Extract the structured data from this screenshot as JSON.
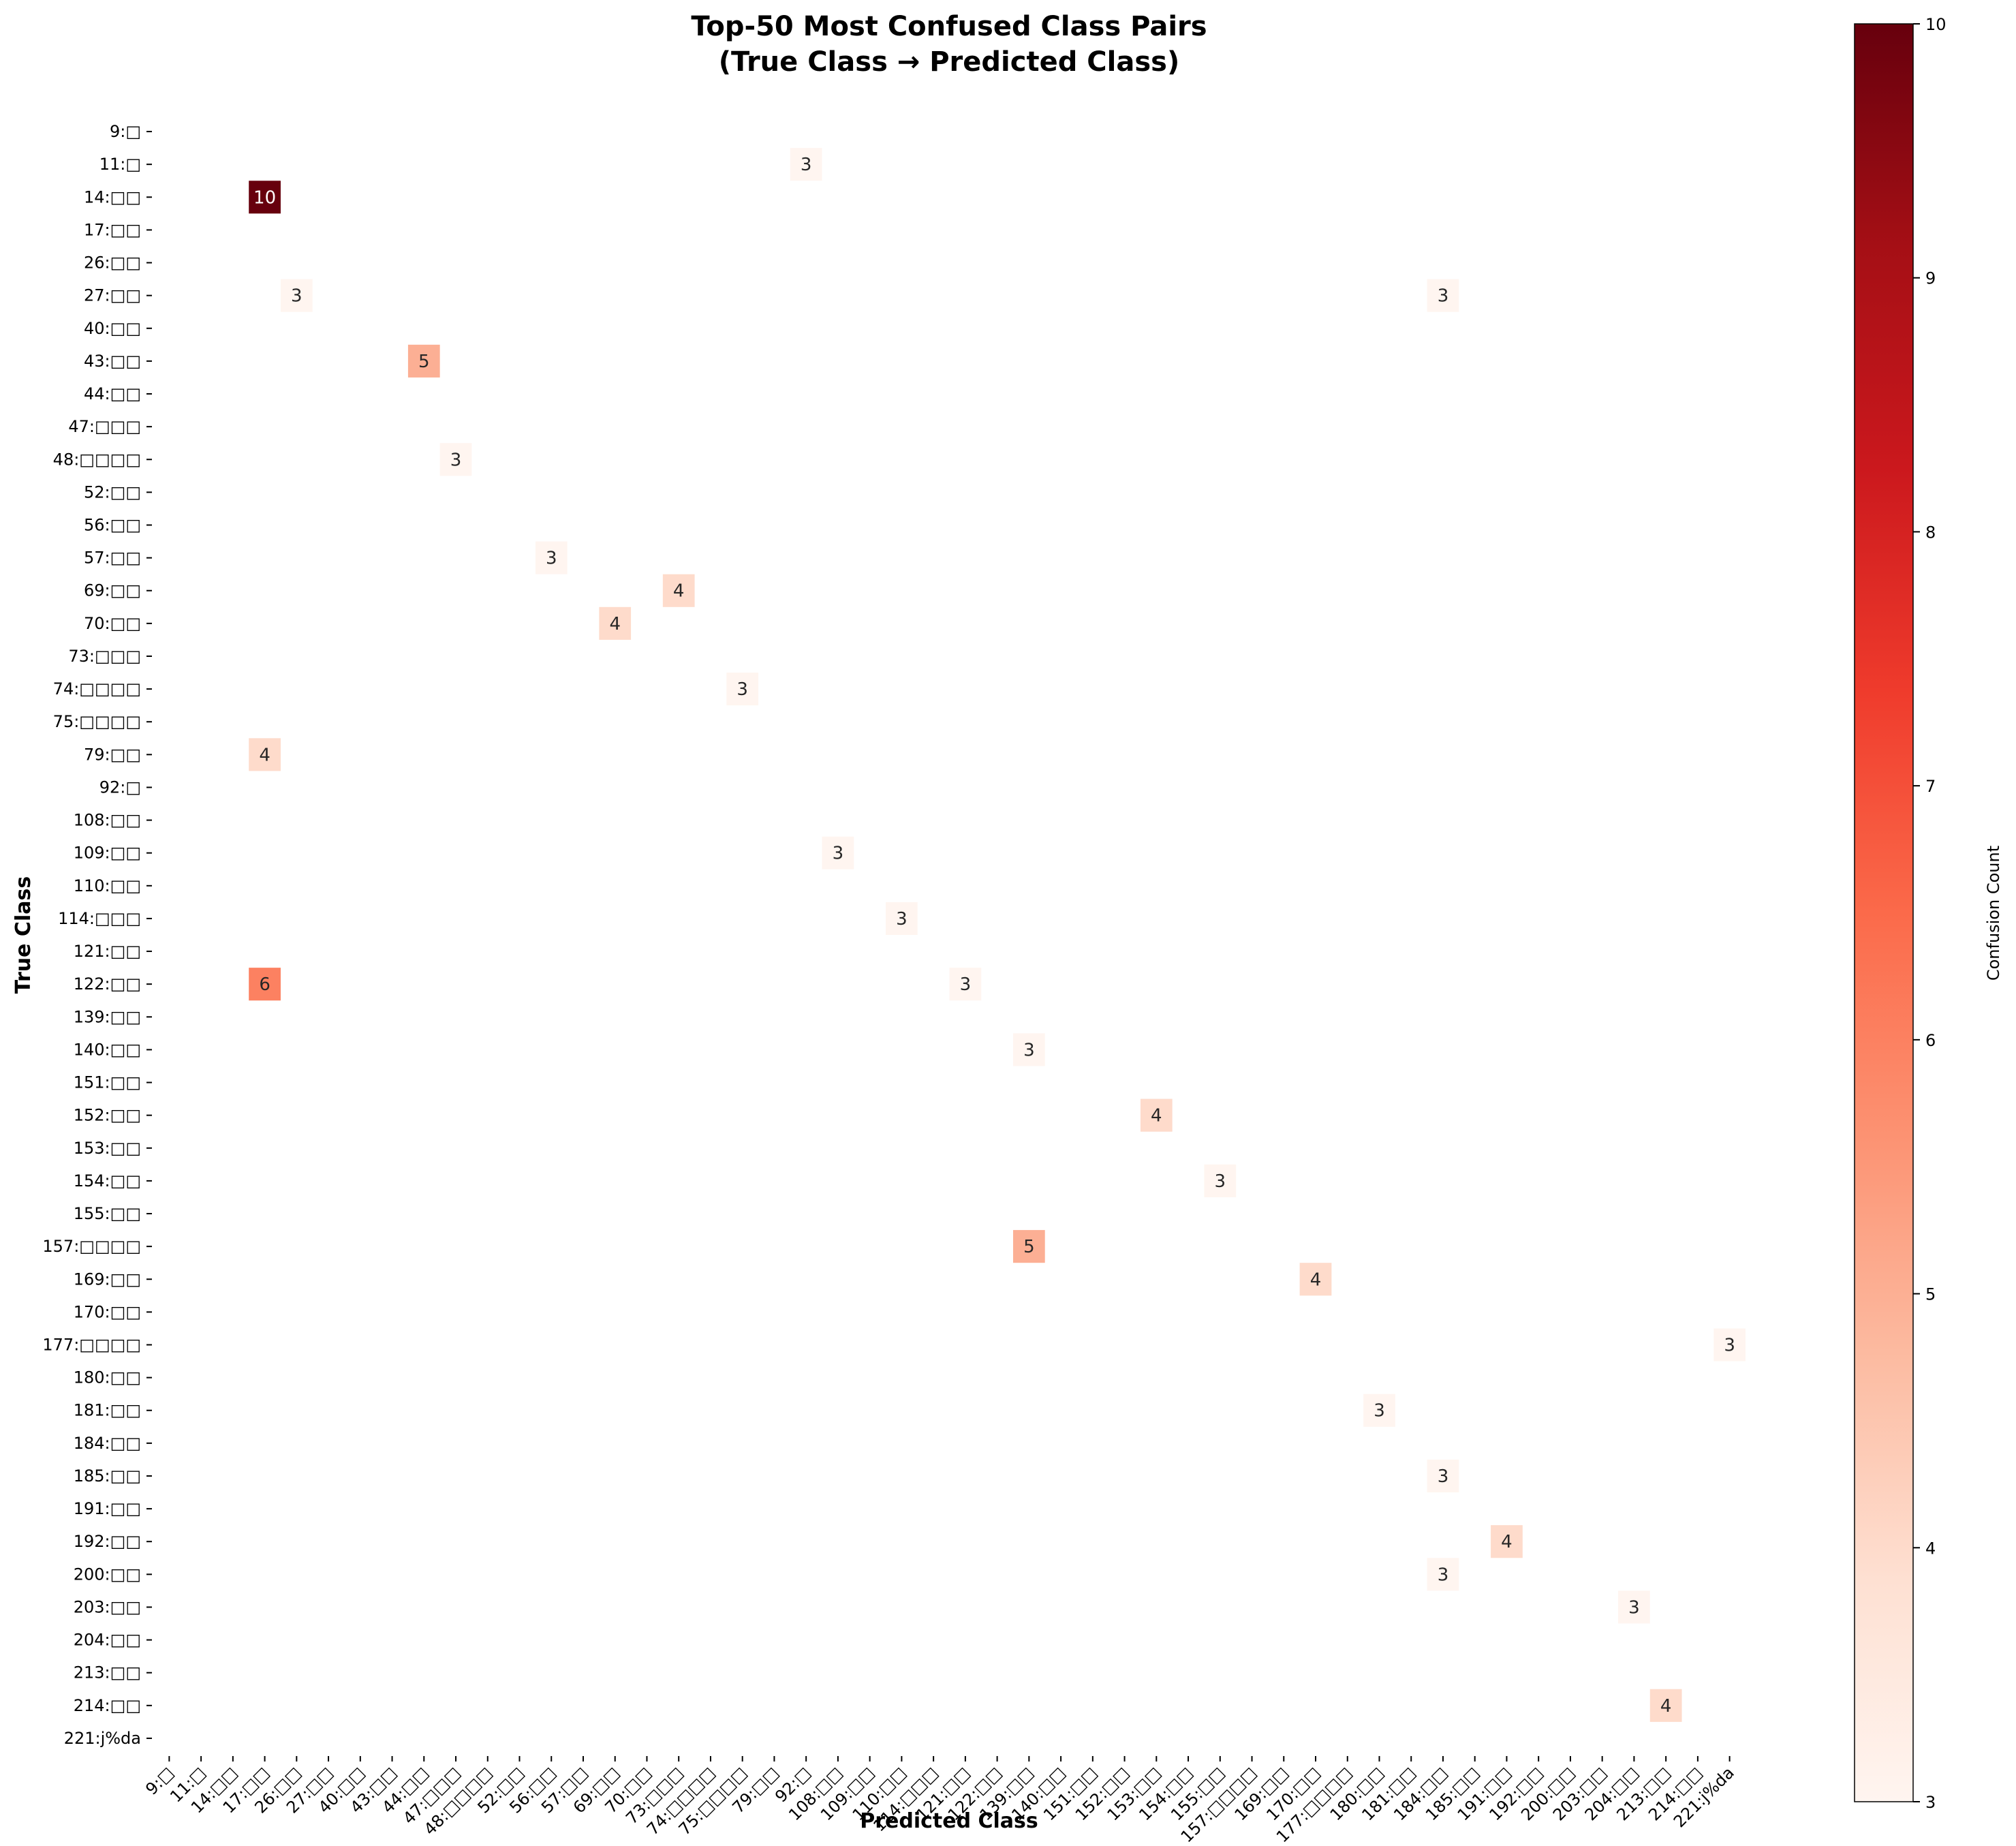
{
  "chart_data": {
    "type": "heatmap",
    "title_lines": [
      "Top-50 Most Confused Class Pairs",
      "(True Class → Predicted Class)"
    ],
    "xlabel": "Predicted Class",
    "ylabel": "True Class",
    "colorbar_label": "Confusion Count",
    "colorbar_range": [
      3,
      10
    ],
    "colorbar_ticks": [
      3,
      4,
      5,
      6,
      7,
      8,
      9,
      10
    ],
    "colormap": "Reds",
    "classes": [
      "9:□",
      "11:□",
      "14:□□",
      "17:□□",
      "26:□□",
      "27:□□",
      "40:□□",
      "43:□□",
      "44:□□",
      "47:□□□",
      "48:□□□□",
      "52:□□",
      "56:□□",
      "57:□□",
      "69:□□",
      "70:□□",
      "73:□□□",
      "74:□□□□",
      "75:□□□□",
      "79:□□",
      "92:□",
      "108:□□",
      "109:□□",
      "110:□□",
      "114:□□□",
      "121:□□",
      "122:□□",
      "139:□□",
      "140:□□",
      "151:□□",
      "152:□□",
      "153:□□",
      "154:□□",
      "155:□□",
      "157:□□□□",
      "169:□□",
      "170:□□",
      "177:□□□□",
      "180:□□",
      "181:□□",
      "184:□□",
      "185:□□",
      "191:□□",
      "192:□□",
      "200:□□",
      "203:□□",
      "204:□□",
      "213:□□",
      "214:□□",
      "221:j%da"
    ],
    "cells": [
      {
        "true": "11:□",
        "pred": "92:□",
        "value": 3
      },
      {
        "true": "14:□□",
        "pred": "17:□□",
        "value": 10
      },
      {
        "true": "27:□□",
        "pred": "26:□□",
        "value": 3
      },
      {
        "true": "27:□□",
        "pred": "184:□□",
        "value": 3
      },
      {
        "true": "43:□□",
        "pred": "44:□□",
        "value": 5
      },
      {
        "true": "48:□□□□",
        "pred": "47:□□□",
        "value": 3
      },
      {
        "true": "57:□□",
        "pred": "56:□□",
        "value": 3
      },
      {
        "true": "69:□□",
        "pred": "73:□□□",
        "value": 4
      },
      {
        "true": "70:□□",
        "pred": "69:□□",
        "value": 4
      },
      {
        "true": "74:□□□□",
        "pred": "75:□□□□",
        "value": 3
      },
      {
        "true": "79:□□",
        "pred": "17:□□",
        "value": 4
      },
      {
        "true": "109:□□",
        "pred": "108:□□",
        "value": 3
      },
      {
        "true": "114:□□□",
        "pred": "110:□□",
        "value": 3
      },
      {
        "true": "122:□□",
        "pred": "17:□□",
        "value": 6
      },
      {
        "true": "122:□□",
        "pred": "121:□□",
        "value": 3
      },
      {
        "true": "140:□□",
        "pred": "139:□□",
        "value": 3
      },
      {
        "true": "152:□□",
        "pred": "153:□□",
        "value": 4
      },
      {
        "true": "154:□□",
        "pred": "155:□□",
        "value": 3
      },
      {
        "true": "157:□□□□",
        "pred": "139:□□",
        "value": 5
      },
      {
        "true": "169:□□",
        "pred": "170:□□",
        "value": 4
      },
      {
        "true": "177:□□□□",
        "pred": "221:j%da",
        "value": 3
      },
      {
        "true": "181:□□",
        "pred": "180:□□",
        "value": 3
      },
      {
        "true": "185:□□",
        "pred": "184:□□",
        "value": 3
      },
      {
        "true": "192:□□",
        "pred": "191:□□",
        "value": 4
      },
      {
        "true": "200:□□",
        "pred": "184:□□",
        "value": 3
      },
      {
        "true": "203:□□",
        "pred": "204:□□",
        "value": 3
      },
      {
        "true": "214:□□",
        "pred": "213:□□",
        "value": 4
      }
    ]
  }
}
